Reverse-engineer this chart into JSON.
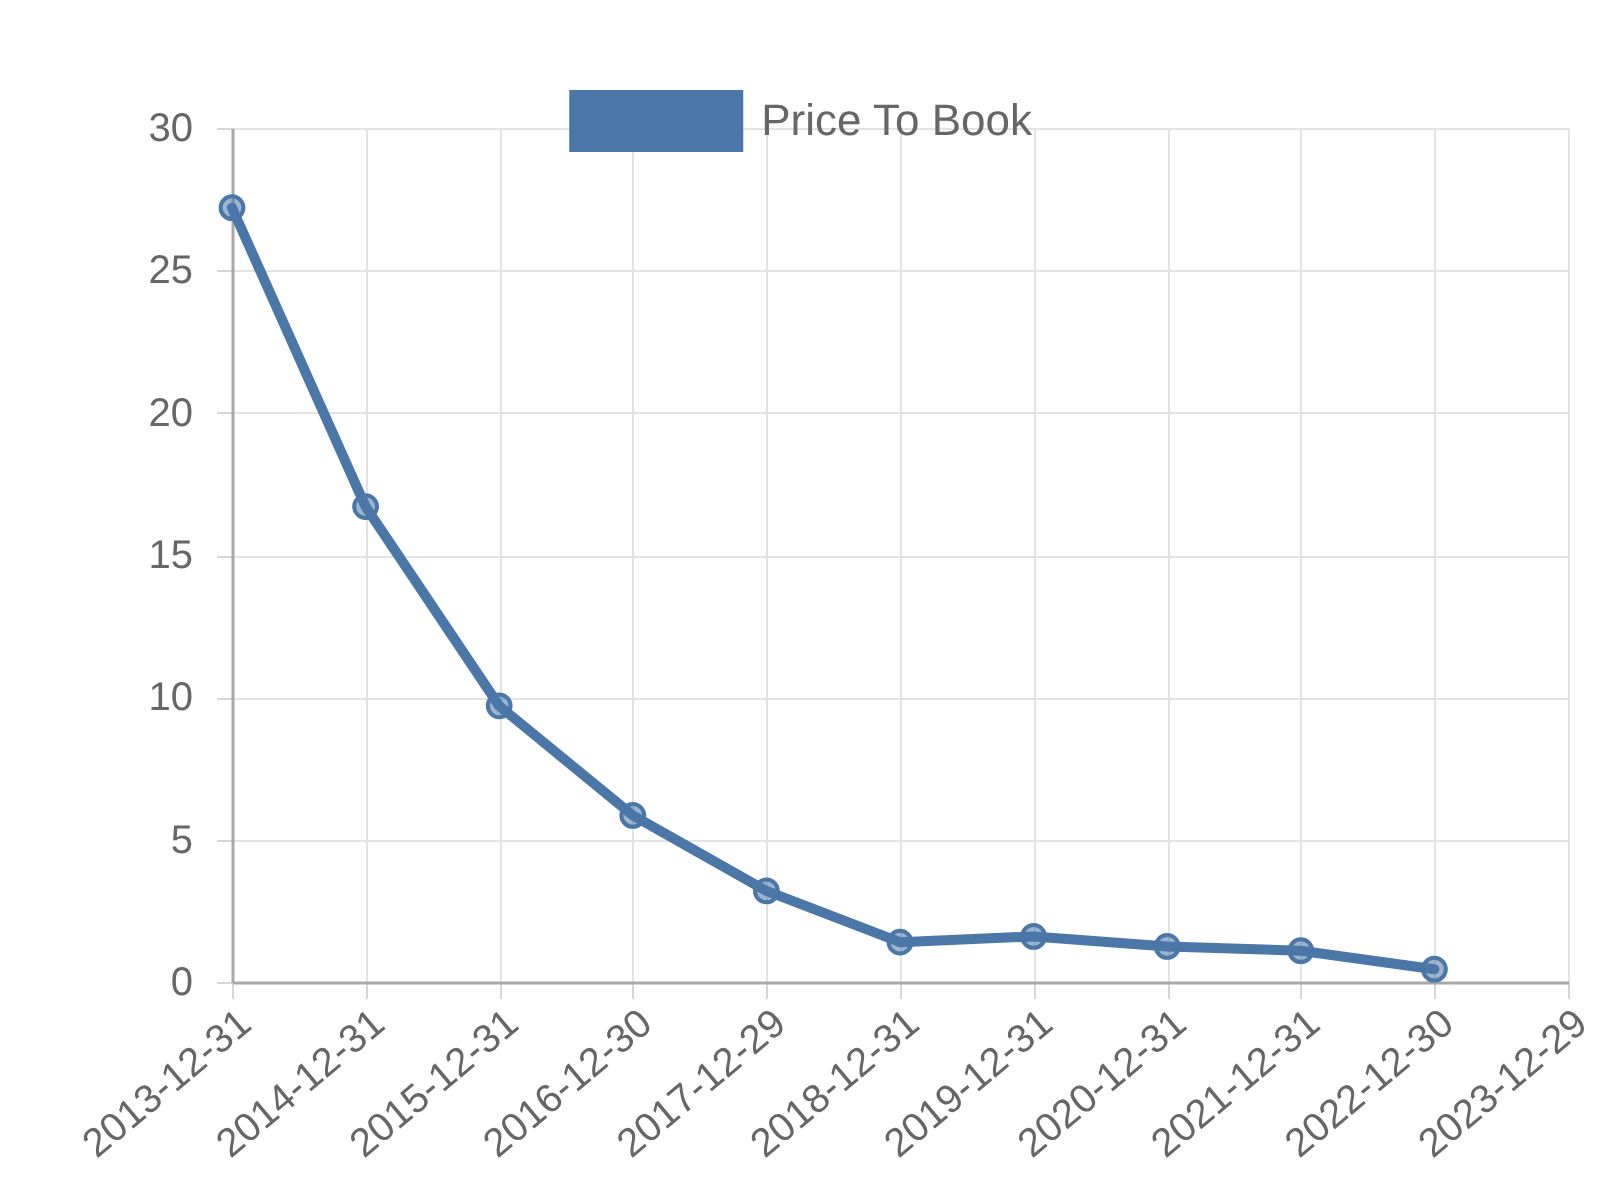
{
  "chart_data": {
    "type": "line",
    "categories": [
      "2013-12-31",
      "2014-12-31",
      "2015-12-31",
      "2016-12-30",
      "2017-12-29",
      "2018-12-31",
      "2019-12-31",
      "2020-12-31",
      "2021-12-31",
      "2022-12-30",
      "2023-12-29"
    ],
    "series": [
      {
        "name": "Price To Book",
        "color": "#4a76a8",
        "values": [
          27.2,
          16.7,
          9.7,
          5.85,
          3.2,
          1.4,
          1.6,
          1.25,
          1.1,
          0.45,
          null
        ]
      }
    ],
    "ylim": [
      0,
      30
    ],
    "yticks": [
      0,
      5,
      10,
      15,
      20,
      25,
      30
    ],
    "grid": true,
    "legend": "top",
    "marker": "circle",
    "line_style": "solid"
  }
}
